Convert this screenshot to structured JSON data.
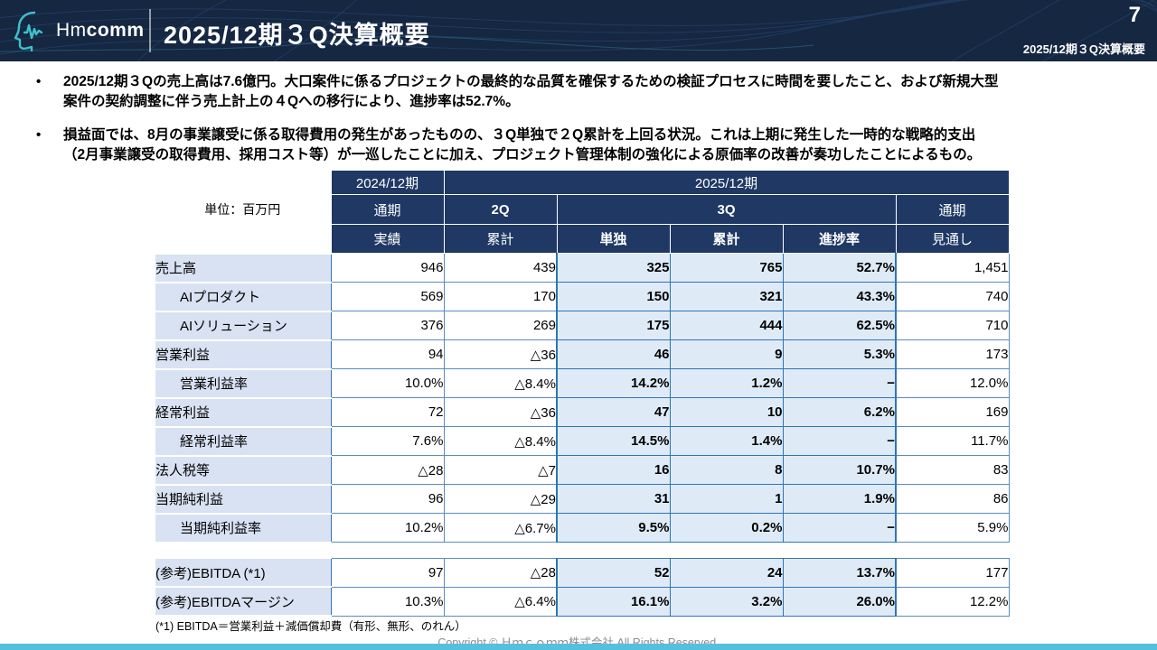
{
  "header": {
    "logo_hm": "Hm",
    "logo_comm": "comm",
    "title": "2025/12期３Q決算概要",
    "page_number": "7",
    "subtitle": "2025/12期３Q決算概要"
  },
  "bullets": [
    "2025/12期３Qの売上高は7.6億円。大口案件に係るプロジェクトの最終的な品質を確保するための検証プロセスに時間を要したこと、および新規大型\n案件の契約調整に伴う売上計上の４Qへの移行により、進捗率は52.7%。",
    "損益面では、8月の事業譲受に係る取得費用の発生があったものの、３Q単独で２Q累計を上回る状況。これは上期に発生した一時的な戦略的支出\n（2月事業譲受の取得費用、採用コスト等）が一巡したことに加え、プロジェクト管理体制の強化による原価率の改善が奏功したことによるもの。"
  ],
  "table": {
    "unit_label": "単位：百万円",
    "top_headers": {
      "fy2024": "2024/12期",
      "fy2025": "2025/12期"
    },
    "period_headers": {
      "fy2024_term": "通期",
      "q2": "2Q",
      "q3": "3Q",
      "fy2025_term": "通期"
    },
    "measure_headers": [
      "実績",
      "累計",
      "単独",
      "累計",
      "進捗率",
      "見通し"
    ],
    "rows": [
      {
        "label": "売上高",
        "indent": false,
        "values": [
          "946",
          "439",
          "325",
          "765",
          "52.7%",
          "1,451"
        ]
      },
      {
        "label": "AIプロダクト",
        "indent": true,
        "values": [
          "569",
          "170",
          "150",
          "321",
          "43.3%",
          "740"
        ]
      },
      {
        "label": "AIソリューション",
        "indent": true,
        "values": [
          "376",
          "269",
          "175",
          "444",
          "62.5%",
          "710"
        ]
      },
      {
        "label": "営業利益",
        "indent": false,
        "values": [
          "94",
          "△36",
          "46",
          "9",
          "5.3%",
          "173"
        ]
      },
      {
        "label": "営業利益率",
        "indent": true,
        "values": [
          "10.0%",
          "△8.4%",
          "14.2%",
          "1.2%",
          "−",
          "12.0%"
        ]
      },
      {
        "label": "経常利益",
        "indent": false,
        "values": [
          "72",
          "△36",
          "47",
          "10",
          "6.2%",
          "169"
        ]
      },
      {
        "label": "経常利益率",
        "indent": true,
        "values": [
          "7.6%",
          "△8.4%",
          "14.5%",
          "1.4%",
          "−",
          "11.7%"
        ]
      },
      {
        "label": "法人税等",
        "indent": false,
        "values": [
          "△28",
          "△7",
          "16",
          "8",
          "10.7%",
          "83"
        ]
      },
      {
        "label": "当期純利益",
        "indent": false,
        "values": [
          "96",
          "△29",
          "31",
          "1",
          "1.9%",
          "86"
        ]
      },
      {
        "label": "当期純利益率",
        "indent": true,
        "values": [
          "10.2%",
          "△6.7%",
          "9.5%",
          "0.2%",
          "−",
          "5.9%"
        ]
      }
    ],
    "reference_rows": [
      {
        "label": "(参考)EBITDA  (*1)",
        "indent": false,
        "values": [
          "97",
          "△28",
          "52",
          "24",
          "13.7%",
          "177"
        ]
      },
      {
        "label": "(参考)EBITDAマージン",
        "indent": false,
        "values": [
          "10.3%",
          "△6.4%",
          "16.1%",
          "3.2%",
          "26.0%",
          "12.2%"
        ]
      }
    ]
  },
  "footnote": "(*1) EBITDA＝営業利益＋減価償却費（有形、無形、のれん）",
  "copyright": "Copyright © Ｈｍｃｏｍｍ株式会社 All Rights Reserved.",
  "colors": {
    "header_bg": "#152741",
    "table_header_bg": "#1F3864",
    "label_column_bg": "#D9E2F3",
    "q3_highlight_bg": "#DEEBF7",
    "table_border": "#2E75B6",
    "accent_bar": "#54C0DE",
    "logo_teal": "#3EC1CC"
  }
}
